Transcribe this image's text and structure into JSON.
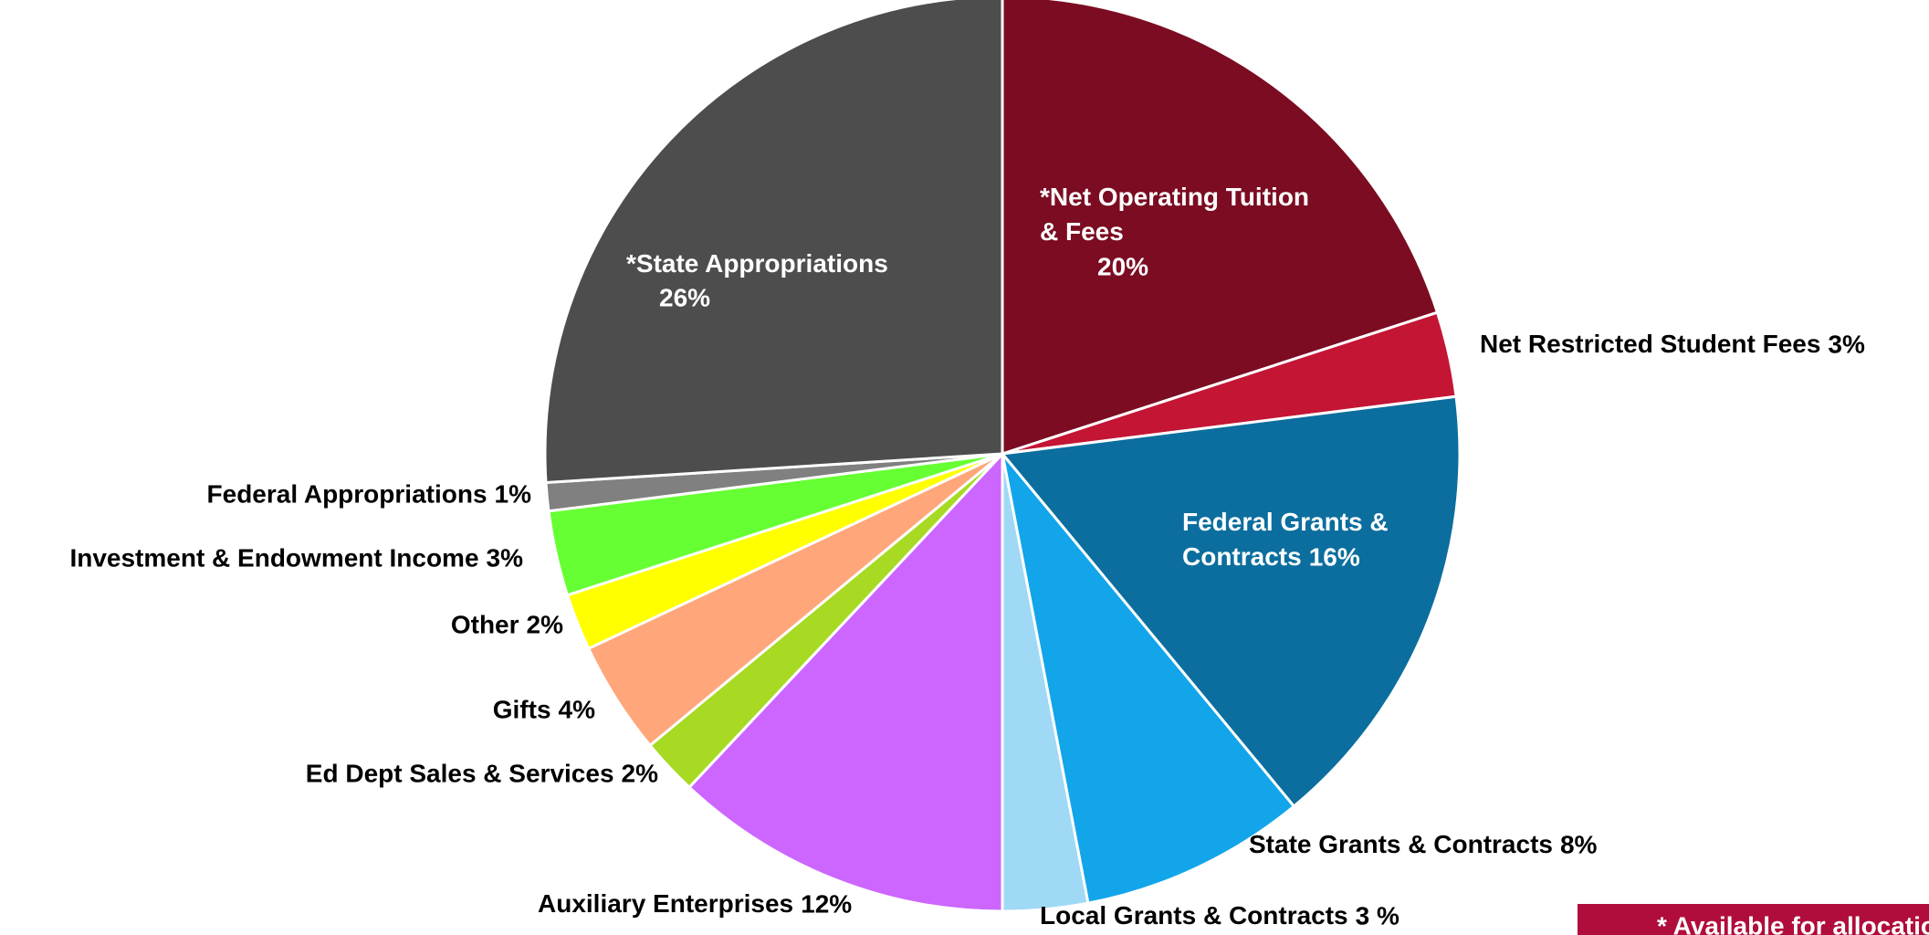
{
  "chart_data": {
    "type": "pie",
    "categories": [
      "*Net Operating Tuition & Fees",
      "Net Restricted Student Fees",
      "Federal Grants & Contracts",
      "State Grants & Contracts",
      "Local Grants & Contracts",
      "Auxiliary Enterprises",
      "Ed Dept Sales & Services",
      "Gifts",
      "Other",
      "Investment & Endowment Income",
      "Federal Appropriations",
      "*State Appropriations"
    ],
    "values": [
      20,
      3,
      16,
      8,
      3,
      12,
      2,
      4,
      2,
      3,
      1,
      26
    ],
    "value_labels": [
      "20%",
      "3%",
      "16%",
      "8%",
      "3 %",
      "12%",
      "2%",
      "4%",
      "2%",
      "3%",
      "1%",
      "26%"
    ],
    "colors": [
      "#7b0c22",
      "#c41535",
      "#0b6e9e",
      "#12a5ea",
      "#9fd9f6",
      "#cc66ff",
      "#a8d923",
      "#ffa67a",
      "#ffff00",
      "#66ff33",
      "#808080",
      "#4d4d4d"
    ],
    "note": "* Available for allocation"
  }
}
